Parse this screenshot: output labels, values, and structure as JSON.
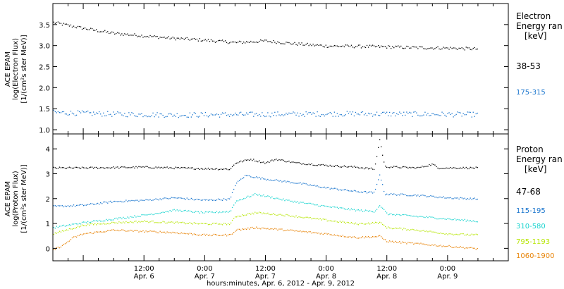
{
  "chart_data": {
    "type": "scatter",
    "x_axis": {
      "label": "hours:minutes, Apr.  6, 2012 - Apr.  9, 2012",
      "range_hours": [
        -6,
        84
      ],
      "ticks": [
        {
          "hour": 12,
          "line1": "12:00",
          "line2": "Apr. 6"
        },
        {
          "hour": 24,
          "line1": "0:00",
          "line2": "Apr. 7"
        },
        {
          "hour": 36,
          "line1": "12:00",
          "line2": "Apr. 7"
        },
        {
          "hour": 48,
          "line1": "0:00",
          "line2": "Apr. 8"
        },
        {
          "hour": 60,
          "line1": "12:00",
          "line2": "Apr. 8"
        },
        {
          "hour": 72,
          "line1": "0:00",
          "line2": "Apr. 9"
        }
      ],
      "data_end_hour": 78
    },
    "panels": [
      {
        "id": "electron",
        "ylabel_lines": [
          "ACE EPAM",
          "log(Electron Flux)",
          "[1/(cm²s ster MeV)]"
        ],
        "ylim": [
          0.9,
          4.0
        ],
        "yticks": [
          "1.0",
          "1.5",
          "2.0",
          "2.5",
          "3.0",
          "3.5"
        ],
        "legend_title_lines": [
          "Electron",
          "Energy ran",
          "[keV]"
        ],
        "series": [
          {
            "name": "38-53",
            "color": "#000000",
            "points": [
              [
                -6,
                3.56
              ],
              [
                0,
                3.42
              ],
              [
                6,
                3.3
              ],
              [
                12,
                3.24
              ],
              [
                18,
                3.18
              ],
              [
                24,
                3.14
              ],
              [
                30,
                3.08
              ],
              [
                36,
                3.12
              ],
              [
                42,
                3.05
              ],
              [
                48,
                3.0
              ],
              [
                54,
                2.99
              ],
              [
                60,
                2.98
              ],
              [
                66,
                2.96
              ],
              [
                72,
                2.95
              ],
              [
                78,
                2.93
              ]
            ]
          },
          {
            "name": "175-315",
            "color": "#1874cd",
            "points": [
              [
                -6,
                1.42
              ],
              [
                6,
                1.38
              ],
              [
                18,
                1.36
              ],
              [
                30,
                1.37
              ],
              [
                42,
                1.38
              ],
              [
                54,
                1.39
              ],
              [
                66,
                1.38
              ],
              [
                78,
                1.37
              ]
            ]
          }
        ]
      },
      {
        "id": "proton",
        "ylabel_lines": [
          "ACE EPAM",
          "log(Proton Flux)",
          "[1/(cm²s ster MeV)]"
        ],
        "ylim": [
          -0.5,
          4.6
        ],
        "yticks": [
          "0",
          "1",
          "2",
          "3",
          "4"
        ],
        "legend_title_lines": [
          "Proton",
          "Energy ran",
          "[keV]"
        ],
        "series": [
          {
            "name": "47-68",
            "color": "#000000",
            "points": [
              [
                -6,
                3.25
              ],
              [
                0,
                3.25
              ],
              [
                12,
                3.28
              ],
              [
                24,
                3.22
              ],
              [
                29,
                3.2
              ],
              [
                30,
                3.45
              ],
              [
                33,
                3.6
              ],
              [
                36,
                3.45
              ],
              [
                38,
                3.6
              ],
              [
                42,
                3.45
              ],
              [
                48,
                3.35
              ],
              [
                54,
                3.28
              ],
              [
                57.5,
                3.2
              ],
              [
                58.5,
                4.4
              ],
              [
                59.5,
                3.3
              ],
              [
                66,
                3.25
              ],
              [
                69,
                3.4
              ],
              [
                70,
                3.25
              ],
              [
                78,
                3.25
              ]
            ]
          },
          {
            "name": "115-195",
            "color": "#1874cd",
            "points": [
              [
                -6,
                1.7
              ],
              [
                0,
                1.75
              ],
              [
                6,
                1.9
              ],
              [
                12,
                1.95
              ],
              [
                18,
                2.05
              ],
              [
                24,
                1.95
              ],
              [
                29,
                2.0
              ],
              [
                30,
                2.6
              ],
              [
                32,
                2.95
              ],
              [
                36,
                2.8
              ],
              [
                42,
                2.65
              ],
              [
                48,
                2.45
              ],
              [
                54,
                2.3
              ],
              [
                57.5,
                2.25
              ],
              [
                58.5,
                3.0
              ],
              [
                59.5,
                2.2
              ],
              [
                66,
                2.15
              ],
              [
                72,
                2.05
              ],
              [
                78,
                2.0
              ]
            ]
          },
          {
            "name": "310-580",
            "color": "#19d4cf",
            "points": [
              [
                -6,
                0.85
              ],
              [
                0,
                1.05
              ],
              [
                6,
                1.2
              ],
              [
                12,
                1.35
              ],
              [
                18,
                1.55
              ],
              [
                24,
                1.45
              ],
              [
                29,
                1.5
              ],
              [
                30,
                1.9
              ],
              [
                34,
                2.2
              ],
              [
                40,
                1.95
              ],
              [
                48,
                1.7
              ],
              [
                54,
                1.55
              ],
              [
                57.5,
                1.5
              ],
              [
                58.5,
                1.75
              ],
              [
                60,
                1.4
              ],
              [
                66,
                1.3
              ],
              [
                72,
                1.2
              ],
              [
                78,
                1.1
              ]
            ]
          },
          {
            "name": "795-1193",
            "color": "#b8e60a",
            "points": [
              [
                -6,
                0.6
              ],
              [
                0,
                0.95
              ],
              [
                6,
                1.05
              ],
              [
                12,
                1.1
              ],
              [
                18,
                1.05
              ],
              [
                24,
                1.0
              ],
              [
                29,
                1.0
              ],
              [
                30,
                1.3
              ],
              [
                34,
                1.45
              ],
              [
                40,
                1.35
              ],
              [
                48,
                1.15
              ],
              [
                54,
                1.0
              ],
              [
                58.5,
                1.05
              ],
              [
                60,
                0.85
              ],
              [
                66,
                0.75
              ],
              [
                72,
                0.6
              ],
              [
                78,
                0.55
              ]
            ]
          },
          {
            "name": "1060-1900",
            "color": "#e8850a",
            "points": [
              [
                -6,
                -0.05
              ],
              [
                -4,
                0.15
              ],
              [
                -2,
                0.45
              ],
              [
                0,
                0.6
              ],
              [
                6,
                0.75
              ],
              [
                12,
                0.7
              ],
              [
                18,
                0.65
              ],
              [
                24,
                0.55
              ],
              [
                29,
                0.55
              ],
              [
                30,
                0.75
              ],
              [
                34,
                0.85
              ],
              [
                40,
                0.75
              ],
              [
                48,
                0.6
              ],
              [
                54,
                0.45
              ],
              [
                58.5,
                0.5
              ],
              [
                60,
                0.3
              ],
              [
                66,
                0.2
              ],
              [
                72,
                0.1
              ],
              [
                78,
                0.0
              ]
            ]
          }
        ]
      }
    ]
  }
}
